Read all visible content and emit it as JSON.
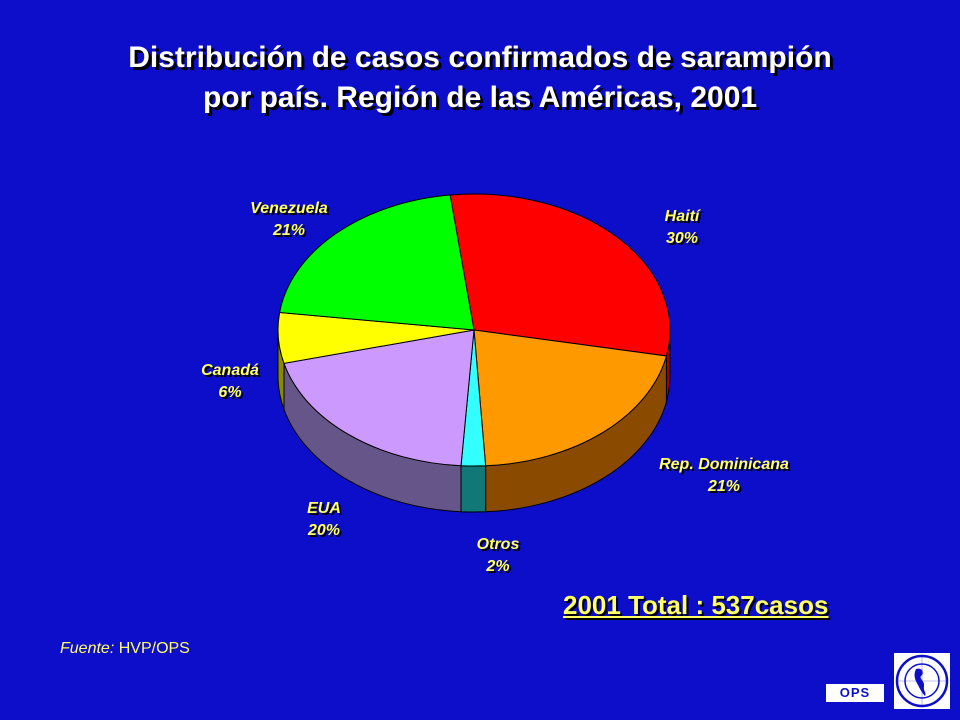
{
  "title_line1": "Distribución de casos confirmados de sarampión",
  "title_line2": "por país.  Región de las Américas, 2001",
  "total_text": "2001 Total : 537casos",
  "source": {
    "label": "Fuente:",
    "value": "HVP/OPS"
  },
  "badge": "OPS",
  "logo_icon": "paho-emblem-icon",
  "colors": {
    "background": "#0d0ec9",
    "label": "#ffff66"
  },
  "chart_data": {
    "type": "pie",
    "style": "3d",
    "slices": [
      {
        "name": "Haití",
        "value": 30,
        "label": "30%",
        "color": "#ff0000",
        "side": "#a00000"
      },
      {
        "name": "Rep. Dominicana",
        "value": 21,
        "label": "21%",
        "color": "#ff9900",
        "side": "#8a4a00"
      },
      {
        "name": "Otros",
        "value": 2,
        "label": "2%",
        "color": "#33ffff",
        "side": "#117777"
      },
      {
        "name": "EUA",
        "value": 20,
        "label": "20%",
        "color": "#cc99ff",
        "side": "#665588"
      },
      {
        "name": "Canadá",
        "value": 6,
        "label": "6%",
        "color": "#ffff00",
        "side": "#8a8a00"
      },
      {
        "name": "Venezuela",
        "value": 21,
        "label": "21%",
        "color": "#00ff00",
        "side": "#008800"
      }
    ]
  }
}
